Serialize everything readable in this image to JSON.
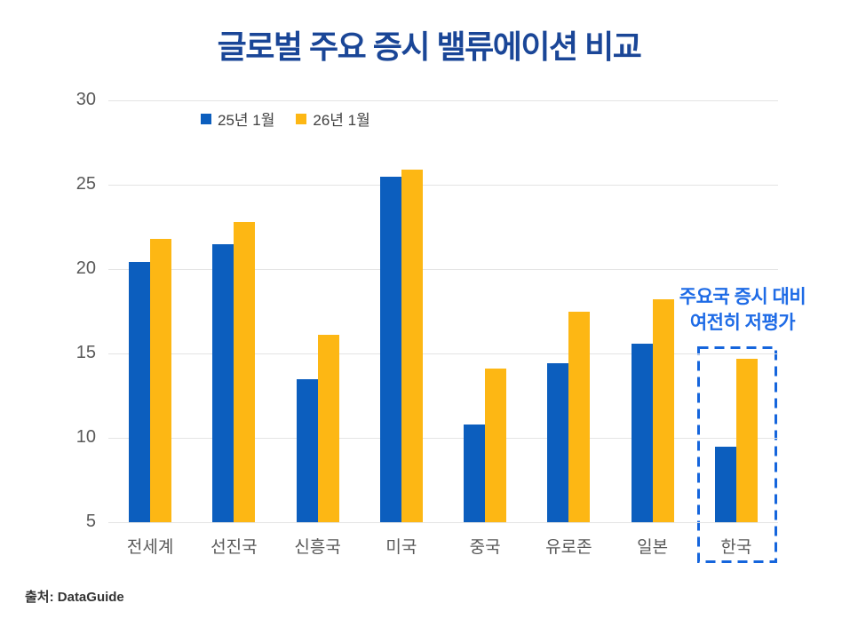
{
  "title": "글로벌 주요 증시 밸류에이션 비교",
  "chart_data": {
    "type": "bar",
    "title": "글로벌 주요 증시 밸류에이션 비교",
    "categories": [
      "전세계",
      "선진국",
      "신흥국",
      "미국",
      "중국",
      "유로존",
      "일본",
      "한국"
    ],
    "series": [
      {
        "name": "25년 1월",
        "color": "#0C5EBE",
        "values": [
          20.4,
          21.5,
          13.5,
          25.5,
          10.8,
          14.4,
          15.6,
          9.5
        ]
      },
      {
        "name": "26년 1월",
        "color": "#FDB714",
        "values": [
          21.8,
          22.8,
          16.1,
          25.9,
          14.1,
          17.5,
          18.2,
          14.7
        ]
      }
    ],
    "xlabel": "",
    "ylabel": "",
    "ylim": [
      5,
      30
    ],
    "yticks": [
      5,
      10,
      15,
      20,
      25,
      30
    ],
    "grid": "horizontal",
    "legend_position": "top-left-inside",
    "highlighted_category": "한국"
  },
  "annotation": {
    "line1": "주요국 증시 대비",
    "line2": "여전히 저평가",
    "target_category": "한국"
  },
  "source": "출처: DataGuide",
  "colors": {
    "title": "#1A4697",
    "annotation": "#1E6BE6",
    "highlight_box": "#1565DC",
    "gridline": "#E4E4E4",
    "axis_text": "#595959",
    "legend_text": "#414141",
    "source_text": "#343434"
  }
}
